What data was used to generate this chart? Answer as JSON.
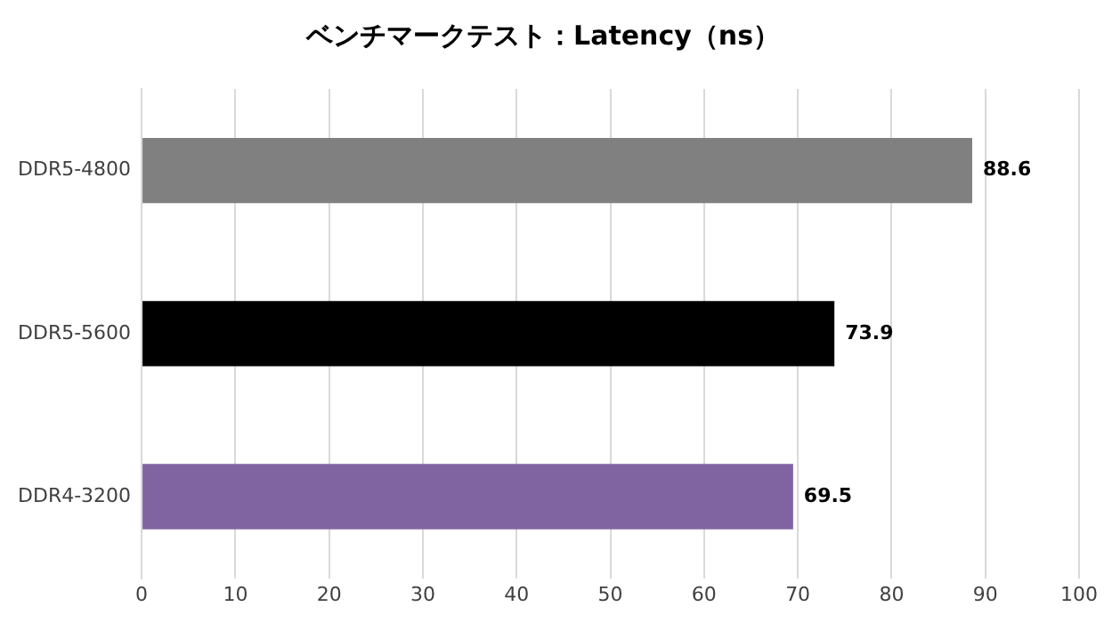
{
  "chart_data": {
    "type": "bar",
    "orientation": "horizontal",
    "title": "ベンチマークテスト：Latency（ns）",
    "categories": [
      "DDR5-4800",
      "DDR5-5600",
      "DDR4-3200"
    ],
    "values": [
      88.6,
      73.9,
      69.5
    ],
    "colors": [
      "#808080",
      "#000000",
      "#8064a2"
    ],
    "xlim": [
      0,
      100
    ],
    "xticks": [
      0,
      10,
      20,
      30,
      40,
      50,
      60,
      70,
      80,
      90,
      100
    ],
    "grid": "x",
    "data_labels": true
  }
}
